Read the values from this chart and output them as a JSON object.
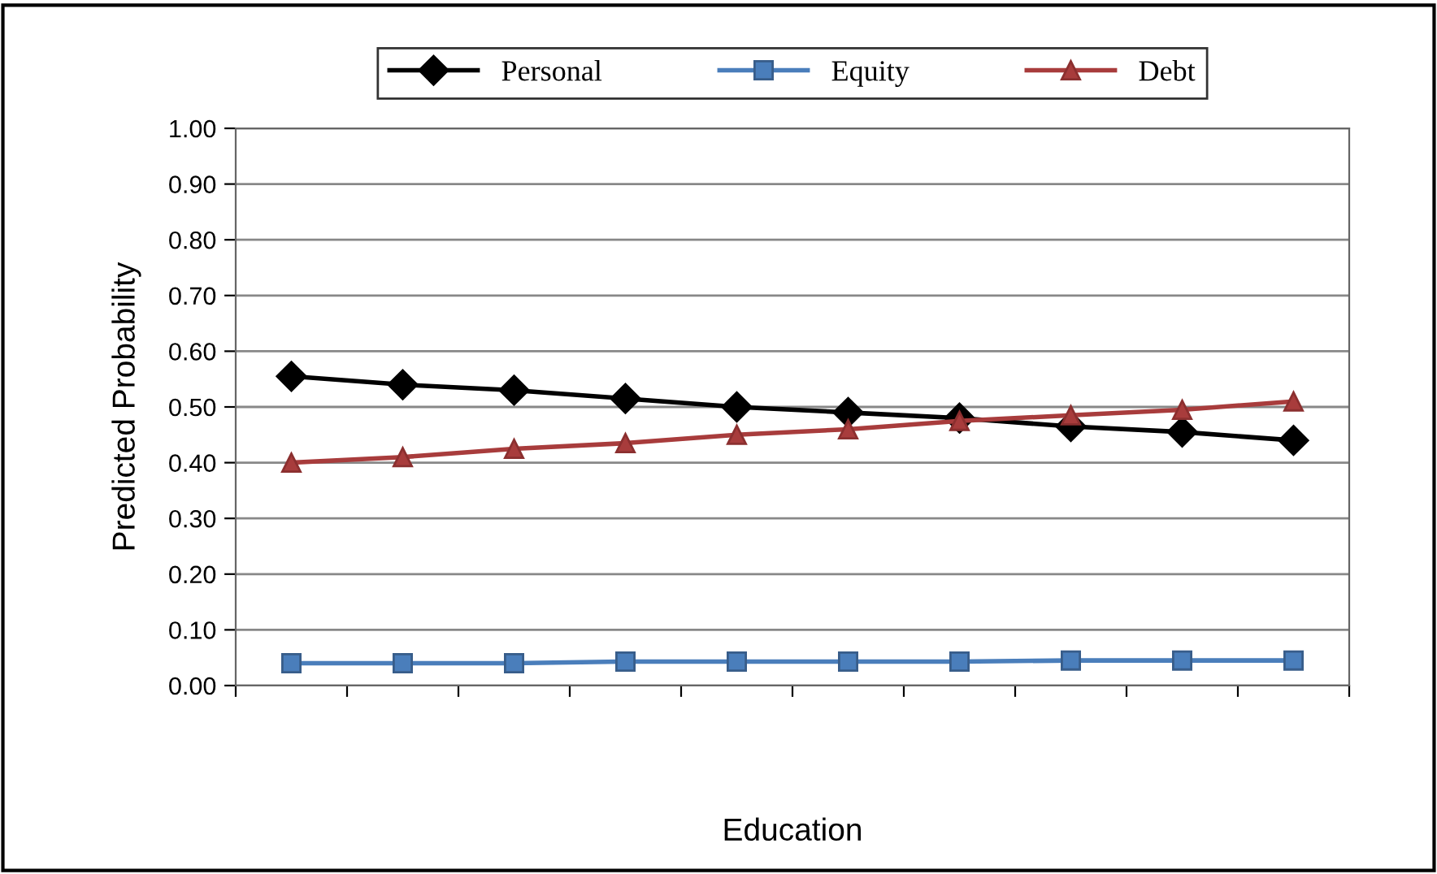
{
  "chart_data": {
    "type": "line",
    "xlabel": "Education",
    "ylabel": "Predicted Probability",
    "categories": [
      null,
      null,
      null,
      null,
      null,
      null,
      null,
      null,
      null,
      null
    ],
    "series": [
      {
        "name": "Personal",
        "color": "#000000",
        "marker": "diamond",
        "values": [
          0.555,
          0.54,
          0.53,
          0.515,
          0.5,
          0.49,
          0.48,
          0.465,
          0.455,
          0.44
        ]
      },
      {
        "name": "Equity",
        "color": "#4a7ebb",
        "marker": "square",
        "values": [
          0.04,
          0.04,
          0.04,
          0.043,
          0.043,
          0.043,
          0.043,
          0.045,
          0.045,
          0.045
        ]
      },
      {
        "name": "Debt",
        "color": "#a83c3c",
        "marker": "triangle",
        "values": [
          0.4,
          0.41,
          0.425,
          0.435,
          0.45,
          0.46,
          0.475,
          0.485,
          0.495,
          0.51
        ]
      }
    ],
    "ylim": [
      0,
      1
    ],
    "yticks": [
      {
        "value": 0,
        "label": "0.00"
      },
      {
        "value": 0.1,
        "label": "0.10"
      },
      {
        "value": 0.2,
        "label": "0.20"
      },
      {
        "value": 0.3,
        "label": "0.30"
      },
      {
        "value": 0.4,
        "label": "0.40"
      },
      {
        "value": 0.5,
        "label": "0.50"
      },
      {
        "value": 0.6,
        "label": "0.60"
      },
      {
        "value": 0.7,
        "label": "0.70"
      },
      {
        "value": 0.8,
        "label": "0.80"
      },
      {
        "value": 0.9,
        "label": "0.90"
      },
      {
        "value": 1,
        "label": "1.00"
      }
    ],
    "grid": "y",
    "legend": "top",
    "line_style": "solid"
  }
}
